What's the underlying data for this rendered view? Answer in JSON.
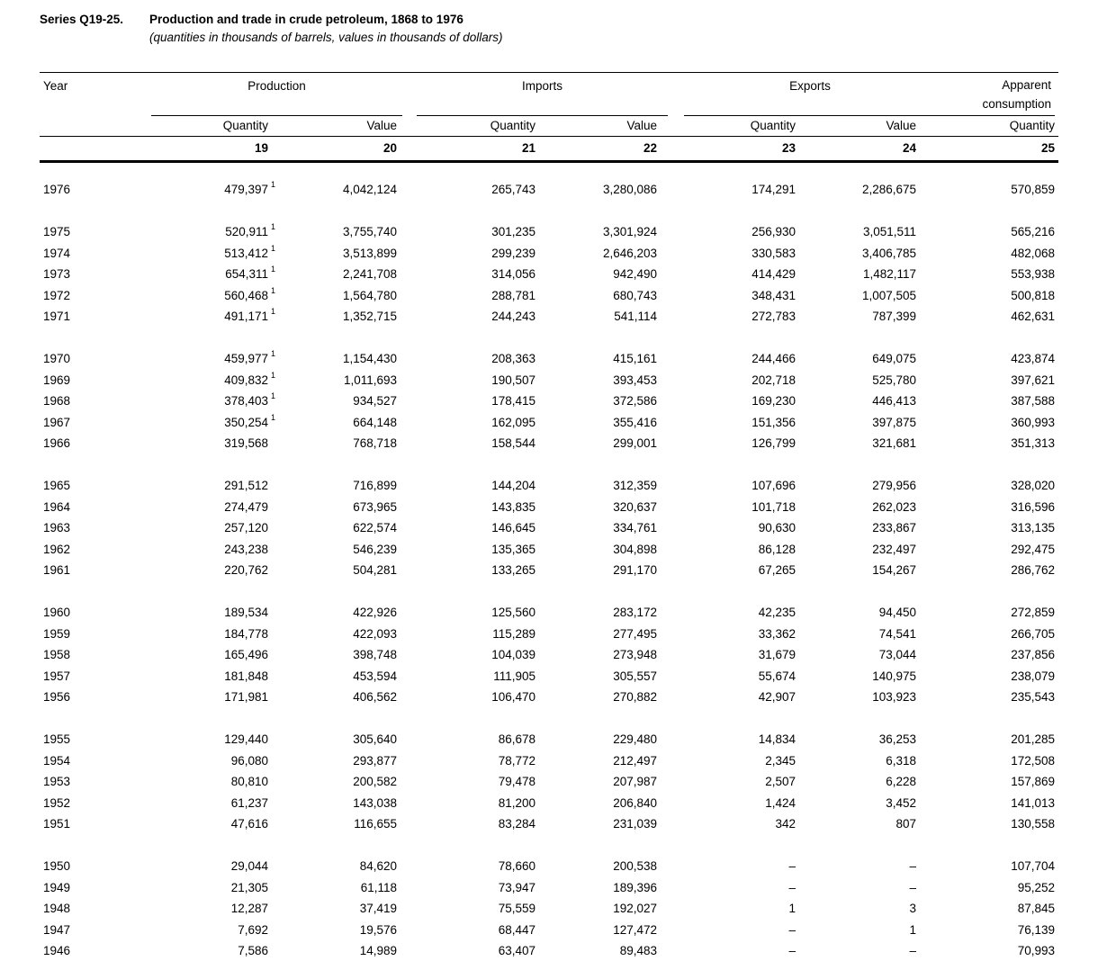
{
  "title_block": {
    "series_label": "Series Q19-25.",
    "title": "Production and trade in crude petroleum, 1868 to 1976",
    "subtitle": "(quantities in thousands of barrels, values in thousands of dollars)"
  },
  "table": {
    "year_header": "Year",
    "groups": {
      "production": "Production",
      "imports": "Imports",
      "exports": "Exports",
      "apparent_line1": "Apparent",
      "apparent_line2": "consumption"
    },
    "sub_headers": [
      "Quantity",
      "Value",
      "Quantity",
      "Value",
      "Quantity",
      "Value",
      "Quantity"
    ],
    "col_numbers": [
      "19",
      "20",
      "21",
      "22",
      "23",
      "24",
      "25"
    ],
    "footnote_marker": "1",
    "missing_marker": "–",
    "row_groups": [
      [
        {
          "year": "1976",
          "fn": true,
          "cells": [
            "479,397",
            "4,042,124",
            "265,743",
            "3,280,086",
            "174,291",
            "2,286,675",
            "570,859"
          ]
        }
      ],
      [
        {
          "year": "1975",
          "fn": true,
          "cells": [
            "520,911",
            "3,755,740",
            "301,235",
            "3,301,924",
            "256,930",
            "3,051,511",
            "565,216"
          ]
        },
        {
          "year": "1974",
          "fn": true,
          "cells": [
            "513,412",
            "3,513,899",
            "299,239",
            "2,646,203",
            "330,583",
            "3,406,785",
            "482,068"
          ]
        },
        {
          "year": "1973",
          "fn": true,
          "cells": [
            "654,311",
            "2,241,708",
            "314,056",
            "942,490",
            "414,429",
            "1,482,117",
            "553,938"
          ]
        },
        {
          "year": "1972",
          "fn": true,
          "cells": [
            "560,468",
            "1,564,780",
            "288,781",
            "680,743",
            "348,431",
            "1,007,505",
            "500,818"
          ]
        },
        {
          "year": "1971",
          "fn": true,
          "cells": [
            "491,171",
            "1,352,715",
            "244,243",
            "541,114",
            "272,783",
            "787,399",
            "462,631"
          ]
        }
      ],
      [
        {
          "year": "1970",
          "fn": true,
          "cells": [
            "459,977",
            "1,154,430",
            "208,363",
            "415,161",
            "244,466",
            "649,075",
            "423,874"
          ]
        },
        {
          "year": "1969",
          "fn": true,
          "cells": [
            "409,832",
            "1,011,693",
            "190,507",
            "393,453",
            "202,718",
            "525,780",
            "397,621"
          ]
        },
        {
          "year": "1968",
          "fn": true,
          "cells": [
            "378,403",
            "934,527",
            "178,415",
            "372,586",
            "169,230",
            "446,413",
            "387,588"
          ]
        },
        {
          "year": "1967",
          "fn": true,
          "cells": [
            "350,254",
            "664,148",
            "162,095",
            "355,416",
            "151,356",
            "397,875",
            "360,993"
          ]
        },
        {
          "year": "1966",
          "fn": false,
          "cells": [
            "319,568",
            "768,718",
            "158,544",
            "299,001",
            "126,799",
            "321,681",
            "351,313"
          ]
        }
      ],
      [
        {
          "year": "1965",
          "fn": false,
          "cells": [
            "291,512",
            "716,899",
            "144,204",
            "312,359",
            "107,696",
            "279,956",
            "328,020"
          ]
        },
        {
          "year": "1964",
          "fn": false,
          "cells": [
            "274,479",
            "673,965",
            "143,835",
            "320,637",
            "101,718",
            "262,023",
            "316,596"
          ]
        },
        {
          "year": "1963",
          "fn": false,
          "cells": [
            "257,120",
            "622,574",
            "146,645",
            "334,761",
            "90,630",
            "233,867",
            "313,135"
          ]
        },
        {
          "year": "1962",
          "fn": false,
          "cells": [
            "243,238",
            "546,239",
            "135,365",
            "304,898",
            "86,128",
            "232,497",
            "292,475"
          ]
        },
        {
          "year": "1961",
          "fn": false,
          "cells": [
            "220,762",
            "504,281",
            "133,265",
            "291,170",
            "67,265",
            "154,267",
            "286,762"
          ]
        }
      ],
      [
        {
          "year": "1960",
          "fn": false,
          "cells": [
            "189,534",
            "422,926",
            "125,560",
            "283,172",
            "42,235",
            "94,450",
            "272,859"
          ]
        },
        {
          "year": "1959",
          "fn": false,
          "cells": [
            "184,778",
            "422,093",
            "115,289",
            "277,495",
            "33,362",
            "74,541",
            "266,705"
          ]
        },
        {
          "year": "1958",
          "fn": false,
          "cells": [
            "165,496",
            "398,748",
            "104,039",
            "273,948",
            "31,679",
            "73,044",
            "237,856"
          ]
        },
        {
          "year": "1957",
          "fn": false,
          "cells": [
            "181,848",
            "453,594",
            "111,905",
            "305,557",
            "55,674",
            "140,975",
            "238,079"
          ]
        },
        {
          "year": "1956",
          "fn": false,
          "cells": [
            "171,981",
            "406,562",
            "106,470",
            "270,882",
            "42,907",
            "103,923",
            "235,543"
          ]
        }
      ],
      [
        {
          "year": "1955",
          "fn": false,
          "cells": [
            "129,440",
            "305,640",
            "86,678",
            "229,480",
            "14,834",
            "36,253",
            "201,285"
          ]
        },
        {
          "year": "1954",
          "fn": false,
          "cells": [
            "96,080",
            "293,877",
            "78,772",
            "212,497",
            "2,345",
            "6,318",
            "172,508"
          ]
        },
        {
          "year": "1953",
          "fn": false,
          "cells": [
            "80,810",
            "200,582",
            "79,478",
            "207,987",
            "2,507",
            "6,228",
            "157,869"
          ]
        },
        {
          "year": "1952",
          "fn": false,
          "cells": [
            "61,237",
            "143,038",
            "81,200",
            "206,840",
            "1,424",
            "3,452",
            "141,013"
          ]
        },
        {
          "year": "1951",
          "fn": false,
          "cells": [
            "47,616",
            "116,655",
            "83,284",
            "231,039",
            "342",
            "807",
            "130,558"
          ]
        }
      ],
      [
        {
          "year": "1950",
          "fn": false,
          "cells": [
            "29,044",
            "84,620",
            "78,660",
            "200,538",
            "–",
            "–",
            "107,704"
          ]
        },
        {
          "year": "1949",
          "fn": false,
          "cells": [
            "21,305",
            "61,118",
            "73,947",
            "189,396",
            "–",
            "–",
            "95,252"
          ]
        },
        {
          "year": "1948",
          "fn": false,
          "cells": [
            "12,287",
            "37,419",
            "75,559",
            "192,027",
            "1",
            "3",
            "87,845"
          ]
        },
        {
          "year": "1947",
          "fn": false,
          "cells": [
            "7,692",
            "19,576",
            "68,447",
            "127,472",
            "–",
            "1",
            "76,139"
          ]
        },
        {
          "year": "1946",
          "fn": false,
          "cells": [
            "7,586",
            "14,989",
            "63,407",
            "89,483",
            "–",
            "–",
            "70,993"
          ]
        }
      ]
    ]
  }
}
